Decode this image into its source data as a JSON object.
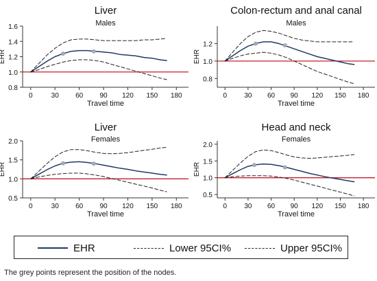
{
  "chart_data": [
    {
      "type": "line",
      "title": "Liver",
      "subtitle": "Males",
      "xlabel": "Travel time",
      "ylabel": "EHR",
      "xlim": [
        -10,
        195
      ],
      "ylim": [
        0.8,
        1.6
      ],
      "xticks": [
        0,
        30,
        60,
        90,
        120,
        150,
        180
      ],
      "yticks": [
        0.8,
        1.0,
        1.2,
        1.4,
        1.6
      ],
      "ytick_labels": [
        "0.8",
        "1.0",
        "1.2",
        "1.4",
        "1.6"
      ],
      "reference_line": 1.0,
      "x": [
        0,
        10,
        20,
        30,
        40,
        50,
        60,
        70,
        80,
        90,
        100,
        110,
        120,
        130,
        140,
        150,
        160,
        168
      ],
      "series": [
        {
          "name": "EHR",
          "values": [
            1.0,
            1.07,
            1.14,
            1.2,
            1.24,
            1.27,
            1.28,
            1.28,
            1.27,
            1.26,
            1.25,
            1.23,
            1.22,
            1.21,
            1.19,
            1.18,
            1.16,
            1.15
          ]
        },
        {
          "name": "Lower 95CI%",
          "values": [
            1.0,
            1.03,
            1.07,
            1.1,
            1.13,
            1.15,
            1.16,
            1.16,
            1.15,
            1.13,
            1.1,
            1.07,
            1.04,
            1.01,
            0.98,
            0.95,
            0.92,
            0.9
          ]
        },
        {
          "name": "Upper 95CI%",
          "values": [
            1.0,
            1.11,
            1.22,
            1.31,
            1.38,
            1.42,
            1.43,
            1.43,
            1.42,
            1.41,
            1.41,
            1.41,
            1.41,
            1.41,
            1.42,
            1.42,
            1.43,
            1.44
          ]
        }
      ],
      "nodes": [
        {
          "x": 40,
          "y": 1.24
        },
        {
          "x": 78,
          "y": 1.27
        }
      ]
    },
    {
      "type": "line",
      "title": "Colon-rectum and anal canal",
      "subtitle": "Males",
      "xlabel": "Travel time",
      "ylabel": "EHR",
      "xlim": [
        -10,
        195
      ],
      "ylim": [
        0.7,
        1.4
      ],
      "xticks": [
        0,
        30,
        60,
        90,
        120,
        150,
        180
      ],
      "yticks": [
        0.8,
        1.0,
        1.2
      ],
      "ytick_labels": [
        "0.8",
        "1.0",
        "1.2"
      ],
      "reference_line": 1.0,
      "x": [
        0,
        10,
        20,
        30,
        40,
        50,
        60,
        70,
        80,
        90,
        100,
        110,
        120,
        130,
        140,
        150,
        160,
        168
      ],
      "series": [
        {
          "name": "EHR",
          "values": [
            1.0,
            1.06,
            1.12,
            1.17,
            1.2,
            1.22,
            1.22,
            1.2,
            1.17,
            1.14,
            1.11,
            1.08,
            1.05,
            1.03,
            1.01,
            0.99,
            0.97,
            0.96
          ]
        },
        {
          "name": "Lower 95CI%",
          "values": [
            1.0,
            1.03,
            1.06,
            1.08,
            1.09,
            1.1,
            1.09,
            1.07,
            1.04,
            1.0,
            0.96,
            0.92,
            0.88,
            0.85,
            0.82,
            0.79,
            0.76,
            0.74
          ]
        },
        {
          "name": "Upper 95CI%",
          "values": [
            1.0,
            1.1,
            1.2,
            1.28,
            1.33,
            1.35,
            1.34,
            1.32,
            1.29,
            1.26,
            1.24,
            1.23,
            1.22,
            1.22,
            1.22,
            1.22,
            1.22,
            1.22
          ]
        }
      ],
      "nodes": [
        {
          "x": 40,
          "y": 1.2
        },
        {
          "x": 78,
          "y": 1.18
        }
      ]
    },
    {
      "type": "line",
      "title": "Liver",
      "subtitle": "Females",
      "xlabel": "Travel time",
      "ylabel": "EHR",
      "xlim": [
        -10,
        195
      ],
      "ylim": [
        0.5,
        2.0
      ],
      "xticks": [
        0,
        30,
        60,
        90,
        120,
        150,
        180
      ],
      "yticks": [
        0.5,
        1.0,
        1.5,
        2.0
      ],
      "ytick_labels": [
        "0.5",
        "1.0",
        "1.5",
        "2.0"
      ],
      "reference_line": 1.0,
      "x": [
        0,
        10,
        20,
        30,
        40,
        50,
        60,
        70,
        80,
        90,
        100,
        110,
        120,
        130,
        140,
        150,
        160,
        168
      ],
      "series": [
        {
          "name": "EHR",
          "values": [
            1.0,
            1.12,
            1.24,
            1.34,
            1.41,
            1.44,
            1.45,
            1.43,
            1.4,
            1.36,
            1.32,
            1.28,
            1.25,
            1.21,
            1.18,
            1.15,
            1.12,
            1.1
          ]
        },
        {
          "name": "Lower 95CI%",
          "values": [
            1.0,
            1.05,
            1.09,
            1.12,
            1.14,
            1.15,
            1.15,
            1.13,
            1.1,
            1.06,
            1.01,
            0.96,
            0.91,
            0.86,
            0.81,
            0.76,
            0.7,
            0.66
          ]
        },
        {
          "name": "Upper 95CI%",
          "values": [
            1.0,
            1.2,
            1.4,
            1.58,
            1.71,
            1.77,
            1.77,
            1.74,
            1.7,
            1.67,
            1.66,
            1.67,
            1.69,
            1.72,
            1.75,
            1.78,
            1.81,
            1.83
          ]
        }
      ],
      "nodes": [
        {
          "x": 40,
          "y": 1.41
        },
        {
          "x": 78,
          "y": 1.4
        }
      ]
    },
    {
      "type": "line",
      "title": "Head and neck",
      "subtitle": "Females",
      "xlabel": "Travel time",
      "ylabel": "EHR",
      "xlim": [
        -10,
        195
      ],
      "ylim": [
        0.4,
        2.1
      ],
      "xticks": [
        0,
        30,
        60,
        90,
        120,
        150,
        180
      ],
      "yticks": [
        0.5,
        1.0,
        1.5,
        2.0
      ],
      "ytick_labels": [
        "0.5",
        "1.0",
        "1.5",
        "2.0"
      ],
      "reference_line": 1.0,
      "x": [
        0,
        10,
        20,
        30,
        40,
        50,
        60,
        70,
        80,
        90,
        100,
        110,
        120,
        130,
        140,
        150,
        160,
        168
      ],
      "series": [
        {
          "name": "EHR",
          "values": [
            1.0,
            1.12,
            1.24,
            1.34,
            1.39,
            1.41,
            1.4,
            1.36,
            1.31,
            1.25,
            1.19,
            1.13,
            1.08,
            1.03,
            0.99,
            0.95,
            0.91,
            0.88
          ]
        },
        {
          "name": "Lower 95CI%",
          "values": [
            1.0,
            1.03,
            1.05,
            1.06,
            1.06,
            1.06,
            1.05,
            1.02,
            0.98,
            0.93,
            0.87,
            0.81,
            0.75,
            0.69,
            0.63,
            0.57,
            0.51,
            0.46
          ]
        },
        {
          "name": "Upper 95CI%",
          "values": [
            1.0,
            1.22,
            1.44,
            1.64,
            1.78,
            1.83,
            1.81,
            1.75,
            1.68,
            1.62,
            1.59,
            1.58,
            1.59,
            1.61,
            1.63,
            1.65,
            1.67,
            1.69
          ]
        }
      ],
      "nodes": [
        {
          "x": 38,
          "y": 1.38
        },
        {
          "x": 78,
          "y": 1.31
        }
      ]
    }
  ],
  "legend": {
    "items": [
      {
        "label": "EHR",
        "style": "solid"
      },
      {
        "label": "Lower 95CI%",
        "style": "dashed"
      },
      {
        "label": "Upper 95CI%",
        "style": "dashed"
      }
    ]
  },
  "note": "The grey points represent the position of the nodes.",
  "colors": {
    "ehr": "#1f3b63",
    "ci": "#222222",
    "reference": "#c81e2a",
    "node": "#a8adb5",
    "axis": "#333333"
  }
}
